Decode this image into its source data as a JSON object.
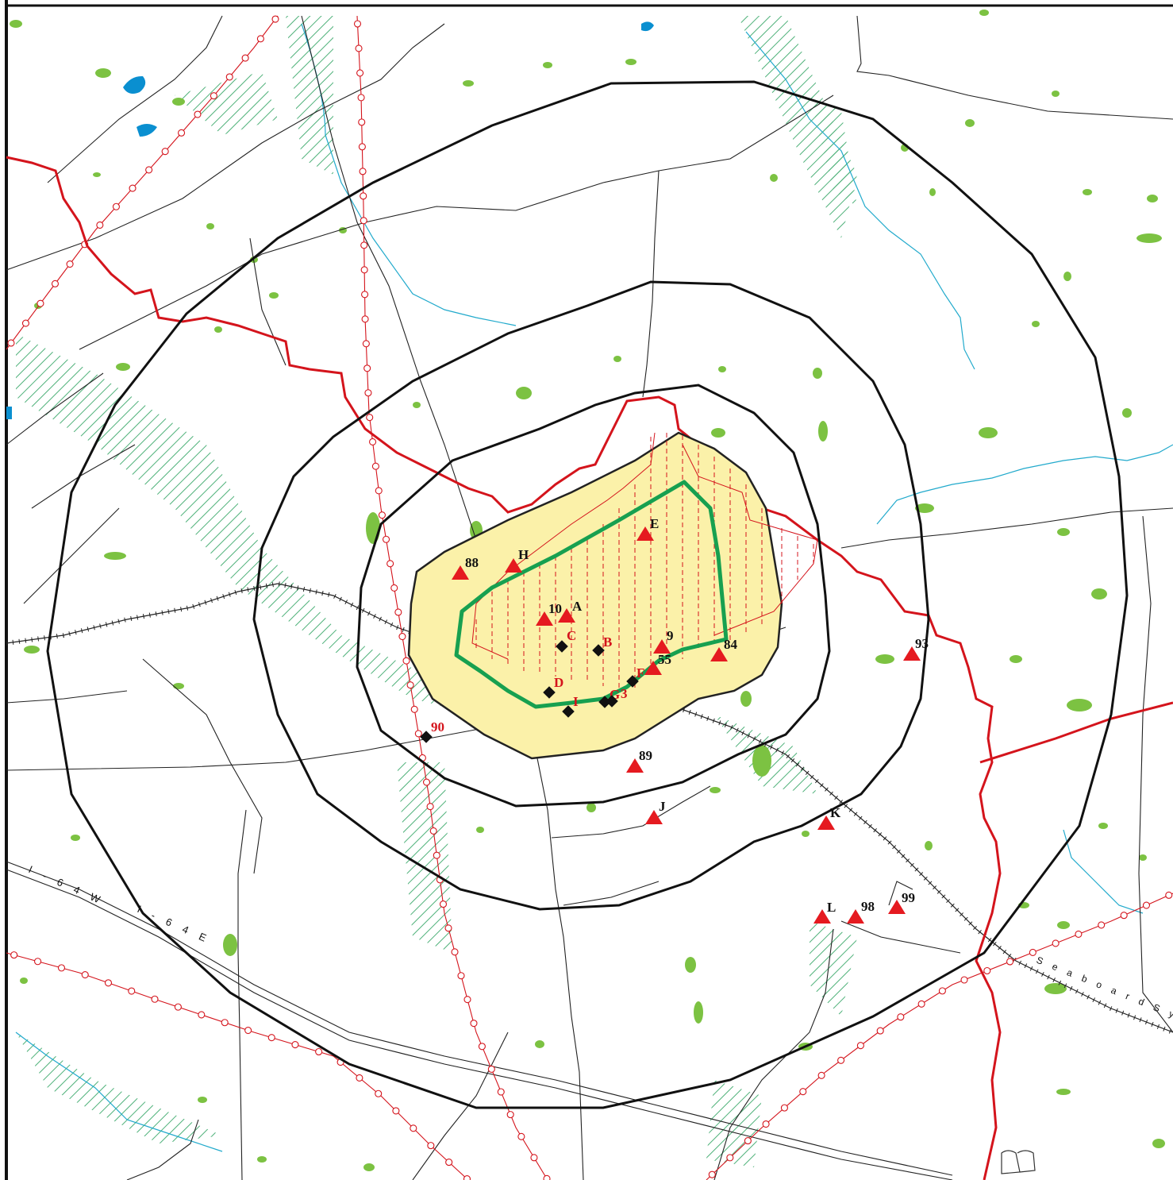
{
  "colors": {
    "contour": "#111111",
    "boundary_red": "#d4141c",
    "facility_green": "#17a050",
    "hazard_fill": "#fbf1a9",
    "vegetation": "#7cc242",
    "water": "#0a8fd0",
    "stream": "#22aacc",
    "wetland_hatch": "#3aa86a",
    "road": "#222222"
  },
  "icons": {
    "sampling_site": "red-triangle-icon",
    "monitoring_well": "black-diamond-icon"
  },
  "triangle_sites": [
    {
      "id": "tri-88",
      "label": "88"
    },
    {
      "id": "tri-h",
      "label": "H"
    },
    {
      "id": "tri-e",
      "label": "E"
    },
    {
      "id": "tri-10",
      "label": "10"
    },
    {
      "id": "tri-a",
      "label": "A"
    },
    {
      "id": "tri-9",
      "label": "9"
    },
    {
      "id": "tri-55",
      "label": "55"
    },
    {
      "id": "tri-84",
      "label": "84"
    },
    {
      "id": "tri-93",
      "label": "93"
    },
    {
      "id": "tri-89",
      "label": "89"
    },
    {
      "id": "tri-j",
      "label": "J"
    },
    {
      "id": "tri-k",
      "label": "K"
    },
    {
      "id": "tri-l",
      "label": "L"
    },
    {
      "id": "tri-98",
      "label": "98"
    },
    {
      "id": "tri-99",
      "label": "99"
    }
  ],
  "diamond_sites": [
    {
      "id": "dia-c",
      "label": "C"
    },
    {
      "id": "dia-b",
      "label": "B"
    },
    {
      "id": "dia-d",
      "label": "D"
    },
    {
      "id": "dia-i",
      "label": "I"
    },
    {
      "id": "dia-g",
      "label": "G"
    },
    {
      "id": "dia-3",
      "label": "3"
    },
    {
      "id": "dia-f",
      "label": "F"
    },
    {
      "id": "dia-90",
      "label": "90"
    }
  ],
  "road_labels": {
    "i64w": "I - 6 4   W",
    "i64e": "I - 6 4   E",
    "railroad": "S e a b o a r d   S y"
  }
}
